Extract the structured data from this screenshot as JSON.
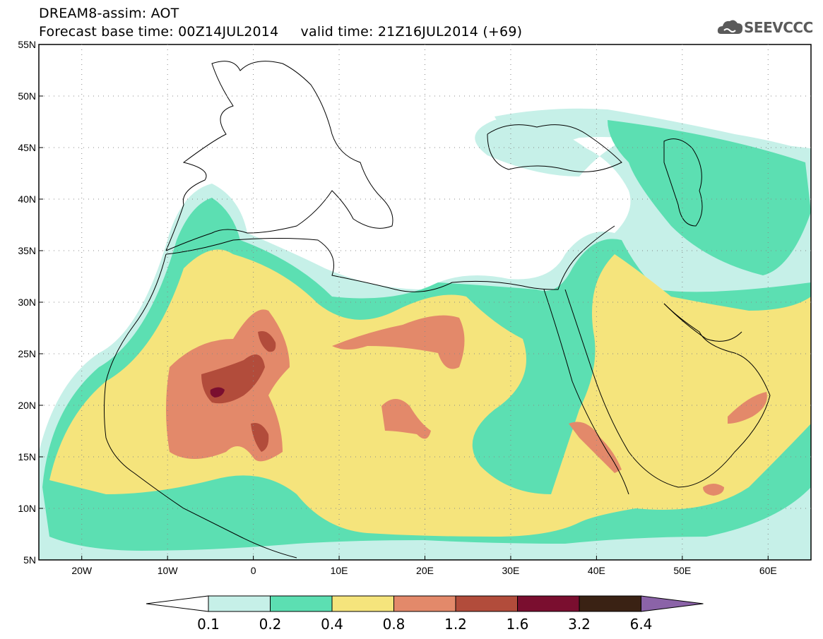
{
  "header": {
    "model_line": "DREAM8-assim: AOT",
    "time_line": "Forecast base time: 00Z14JUL2014     valid time: 21Z16JUL2014 (+69)"
  },
  "logo": {
    "text": "SEEVCCC",
    "icon": "cloud-icon"
  },
  "map": {
    "lat_labels": [
      "55N",
      "50N",
      "45N",
      "40N",
      "35N",
      "30N",
      "25N",
      "20N",
      "15N",
      "10N",
      "5N"
    ],
    "lon_labels": [
      "20W",
      "10W",
      "0",
      "10E",
      "20E",
      "30E",
      "40E",
      "50E",
      "60E"
    ]
  },
  "legend": {
    "thresholds": [
      "0.1",
      "0.2",
      "0.4",
      "0.8",
      "1.2",
      "1.6",
      "3.2",
      "6.4"
    ],
    "colors": [
      "#ffffff",
      "#c6f0e8",
      "#5cdfb2",
      "#f5e47c",
      "#e3896a",
      "#b24c3b",
      "#7a0e2f",
      "#3a2214",
      "#8b63a8"
    ]
  }
}
